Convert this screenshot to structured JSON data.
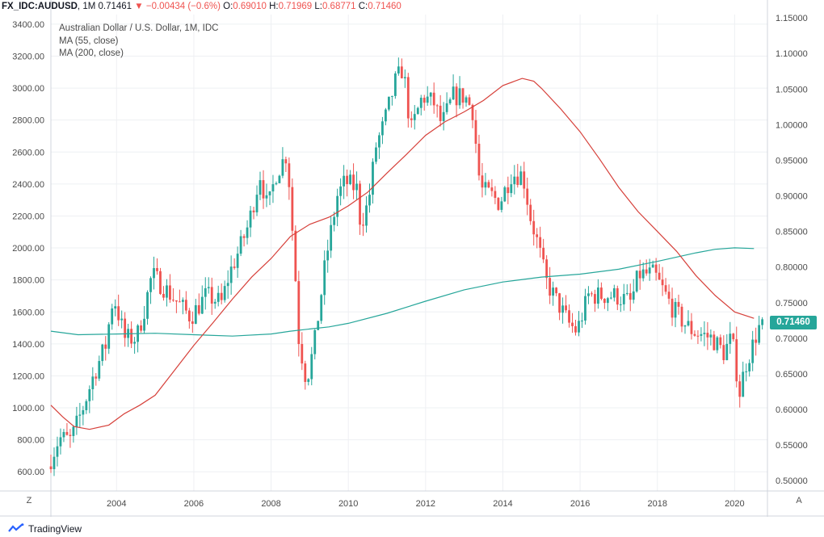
{
  "header": {
    "symbol": "FX_IDC:AUDUSD",
    "interval": "1M",
    "last": "0.71461",
    "arrow": "▼",
    "change": "−0.00434 (−0.6%)",
    "o_label": "O:",
    "o_val": "0.69010",
    "h_label": "H:",
    "h_val": "0.71969",
    "l_label": "L:",
    "l_val": "0.68771",
    "c_label": "C:",
    "c_val": "0.71460"
  },
  "legend": {
    "title": "Australian Dollar / U.S. Dollar, 1M, IDC",
    "ma55": "MA (55, close)",
    "ma200": "MA (200, close)"
  },
  "corner_left": "Z",
  "corner_right": "A",
  "footer": {
    "brand": "TradingView"
  },
  "price_badge": "0.71460",
  "colors": {
    "up": "#26a69a",
    "down": "#ef5350",
    "ma55": "#d6403a",
    "ma200": "#26a69a",
    "grid": "#eef0f3"
  },
  "chart_data": {
    "type": "candlestick",
    "title": "Australian Dollar / U.S. Dollar, 1M, IDC",
    "left_axis": {
      "ticks": [
        "600.00",
        "800.00",
        "1000.00",
        "1200.00",
        "1400.00",
        "1600.00",
        "1800.00",
        "2000.00",
        "2200.00",
        "2400.00",
        "2600.00",
        "2800.00",
        "3000.00",
        "3200.00",
        "3400.00"
      ],
      "range": [
        480,
        3460
      ]
    },
    "right_axis": {
      "ticks": [
        "0.50000",
        "0.55000",
        "0.60000",
        "0.65000",
        "0.70000",
        "0.75000",
        "0.80000",
        "0.85000",
        "0.90000",
        "0.95000",
        "1.00000",
        "1.05000",
        "1.10000",
        "1.15000"
      ],
      "range": [
        0.4855,
        1.1547
      ]
    },
    "x_axis": {
      "ticks": [
        "2004",
        "2006",
        "2008",
        "2010",
        "2012",
        "2014",
        "2016",
        "2018",
        "2020"
      ],
      "range": [
        2002.3,
        2020.85
      ]
    },
    "grid": true,
    "candle_anchors": [
      [
        2002.3,
        0.52
      ],
      [
        2002.6,
        0.56
      ],
      [
        2002.9,
        0.557
      ],
      [
        2003.2,
        0.6
      ],
      [
        2003.5,
        0.65
      ],
      [
        2003.8,
        0.69
      ],
      [
        2004.0,
        0.76
      ],
      [
        2004.3,
        0.7
      ],
      [
        2004.6,
        0.7
      ],
      [
        2004.8,
        0.74
      ],
      [
        2005.0,
        0.79
      ],
      [
        2005.5,
        0.76
      ],
      [
        2006.0,
        0.73
      ],
      [
        2006.4,
        0.76
      ],
      [
        2006.8,
        0.75
      ],
      [
        2007.0,
        0.79
      ],
      [
        2007.3,
        0.83
      ],
      [
        2007.5,
        0.86
      ],
      [
        2007.8,
        0.93
      ],
      [
        2008.0,
        0.88
      ],
      [
        2008.2,
        0.93
      ],
      [
        2008.5,
        0.96
      ],
      [
        2008.7,
        0.8
      ],
      [
        2008.8,
        0.7
      ],
      [
        2009.0,
        0.64
      ],
      [
        2009.2,
        0.69
      ],
      [
        2009.5,
        0.81
      ],
      [
        2009.8,
        0.9
      ],
      [
        2010.0,
        0.92
      ],
      [
        2010.3,
        0.91
      ],
      [
        2010.4,
        0.86
      ],
      [
        2010.6,
        0.89
      ],
      [
        2010.8,
        0.97
      ],
      [
        2011.0,
        1.0
      ],
      [
        2011.3,
        1.06
      ],
      [
        2011.5,
        1.08
      ],
      [
        2011.7,
        0.99
      ],
      [
        2012.0,
        1.04
      ],
      [
        2012.3,
        1.03
      ],
      [
        2012.5,
        1.0
      ],
      [
        2012.8,
        1.04
      ],
      [
        2013.1,
        1.04
      ],
      [
        2013.3,
        1.02
      ],
      [
        2013.5,
        0.91
      ],
      [
        2013.8,
        0.9
      ],
      [
        2014.0,
        0.89
      ],
      [
        2014.3,
        0.93
      ],
      [
        2014.6,
        0.93
      ],
      [
        2014.8,
        0.87
      ],
      [
        2015.0,
        0.83
      ],
      [
        2015.2,
        0.78
      ],
      [
        2015.6,
        0.74
      ],
      [
        2015.8,
        0.72
      ],
      [
        2016.0,
        0.71
      ],
      [
        2016.3,
        0.76
      ],
      [
        2016.6,
        0.76
      ],
      [
        2017.0,
        0.76
      ],
      [
        2017.4,
        0.75
      ],
      [
        2017.6,
        0.79
      ],
      [
        2018.0,
        0.79
      ],
      [
        2018.2,
        0.77
      ],
      [
        2018.5,
        0.74
      ],
      [
        2018.8,
        0.72
      ],
      [
        2019.0,
        0.71
      ],
      [
        2019.5,
        0.7
      ],
      [
        2019.8,
        0.68
      ],
      [
        2020.0,
        0.7
      ],
      [
        2020.1,
        0.67
      ],
      [
        2020.2,
        0.62
      ],
      [
        2020.35,
        0.66
      ],
      [
        2020.55,
        0.69
      ],
      [
        2020.7,
        0.715
      ]
    ],
    "ma55": [
      [
        2002.3,
        0.606
      ],
      [
        2002.6,
        0.59
      ],
      [
        2002.9,
        0.576
      ],
      [
        2003.3,
        0.572
      ],
      [
        2003.8,
        0.578
      ],
      [
        2004.2,
        0.594
      ],
      [
        2004.6,
        0.606
      ],
      [
        2005.0,
        0.62
      ],
      [
        2005.5,
        0.655
      ],
      [
        2006.0,
        0.69
      ],
      [
        2006.5,
        0.722
      ],
      [
        2007.0,
        0.755
      ],
      [
        2007.5,
        0.786
      ],
      [
        2008.0,
        0.812
      ],
      [
        2008.5,
        0.843
      ],
      [
        2009.0,
        0.86
      ],
      [
        2009.5,
        0.87
      ],
      [
        2010.0,
        0.886
      ],
      [
        2010.5,
        0.905
      ],
      [
        2011.0,
        0.932
      ],
      [
        2011.5,
        0.958
      ],
      [
        2012.0,
        0.985
      ],
      [
        2012.5,
        1.004
      ],
      [
        2013.0,
        1.018
      ],
      [
        2013.5,
        1.034
      ],
      [
        2014.0,
        1.055
      ],
      [
        2014.5,
        1.065
      ],
      [
        2014.8,
        1.061
      ],
      [
        2015.0,
        1.051
      ],
      [
        2015.5,
        1.022
      ],
      [
        2016.0,
        0.99
      ],
      [
        2016.5,
        0.952
      ],
      [
        2017.0,
        0.912
      ],
      [
        2017.5,
        0.878
      ],
      [
        2018.0,
        0.85
      ],
      [
        2018.5,
        0.822
      ],
      [
        2019.0,
        0.788
      ],
      [
        2019.5,
        0.76
      ],
      [
        2020.0,
        0.737
      ],
      [
        2020.5,
        0.728
      ]
    ],
    "ma200": [
      [
        2002.3,
        0.71
      ],
      [
        2003.0,
        0.705
      ],
      [
        2004.0,
        0.706
      ],
      [
        2005.0,
        0.707
      ],
      [
        2006.0,
        0.705
      ],
      [
        2007.0,
        0.703
      ],
      [
        2008.0,
        0.706
      ],
      [
        2008.5,
        0.71
      ],
      [
        2009.0,
        0.713
      ],
      [
        2009.5,
        0.716
      ],
      [
        2010.0,
        0.721
      ],
      [
        2011.0,
        0.735
      ],
      [
        2012.0,
        0.752
      ],
      [
        2013.0,
        0.768
      ],
      [
        2014.0,
        0.779
      ],
      [
        2015.0,
        0.786
      ],
      [
        2016.0,
        0.79
      ],
      [
        2017.0,
        0.797
      ],
      [
        2018.0,
        0.808
      ],
      [
        2019.0,
        0.82
      ],
      [
        2019.5,
        0.825
      ],
      [
        2020.0,
        0.827
      ],
      [
        2020.5,
        0.826
      ]
    ]
  }
}
